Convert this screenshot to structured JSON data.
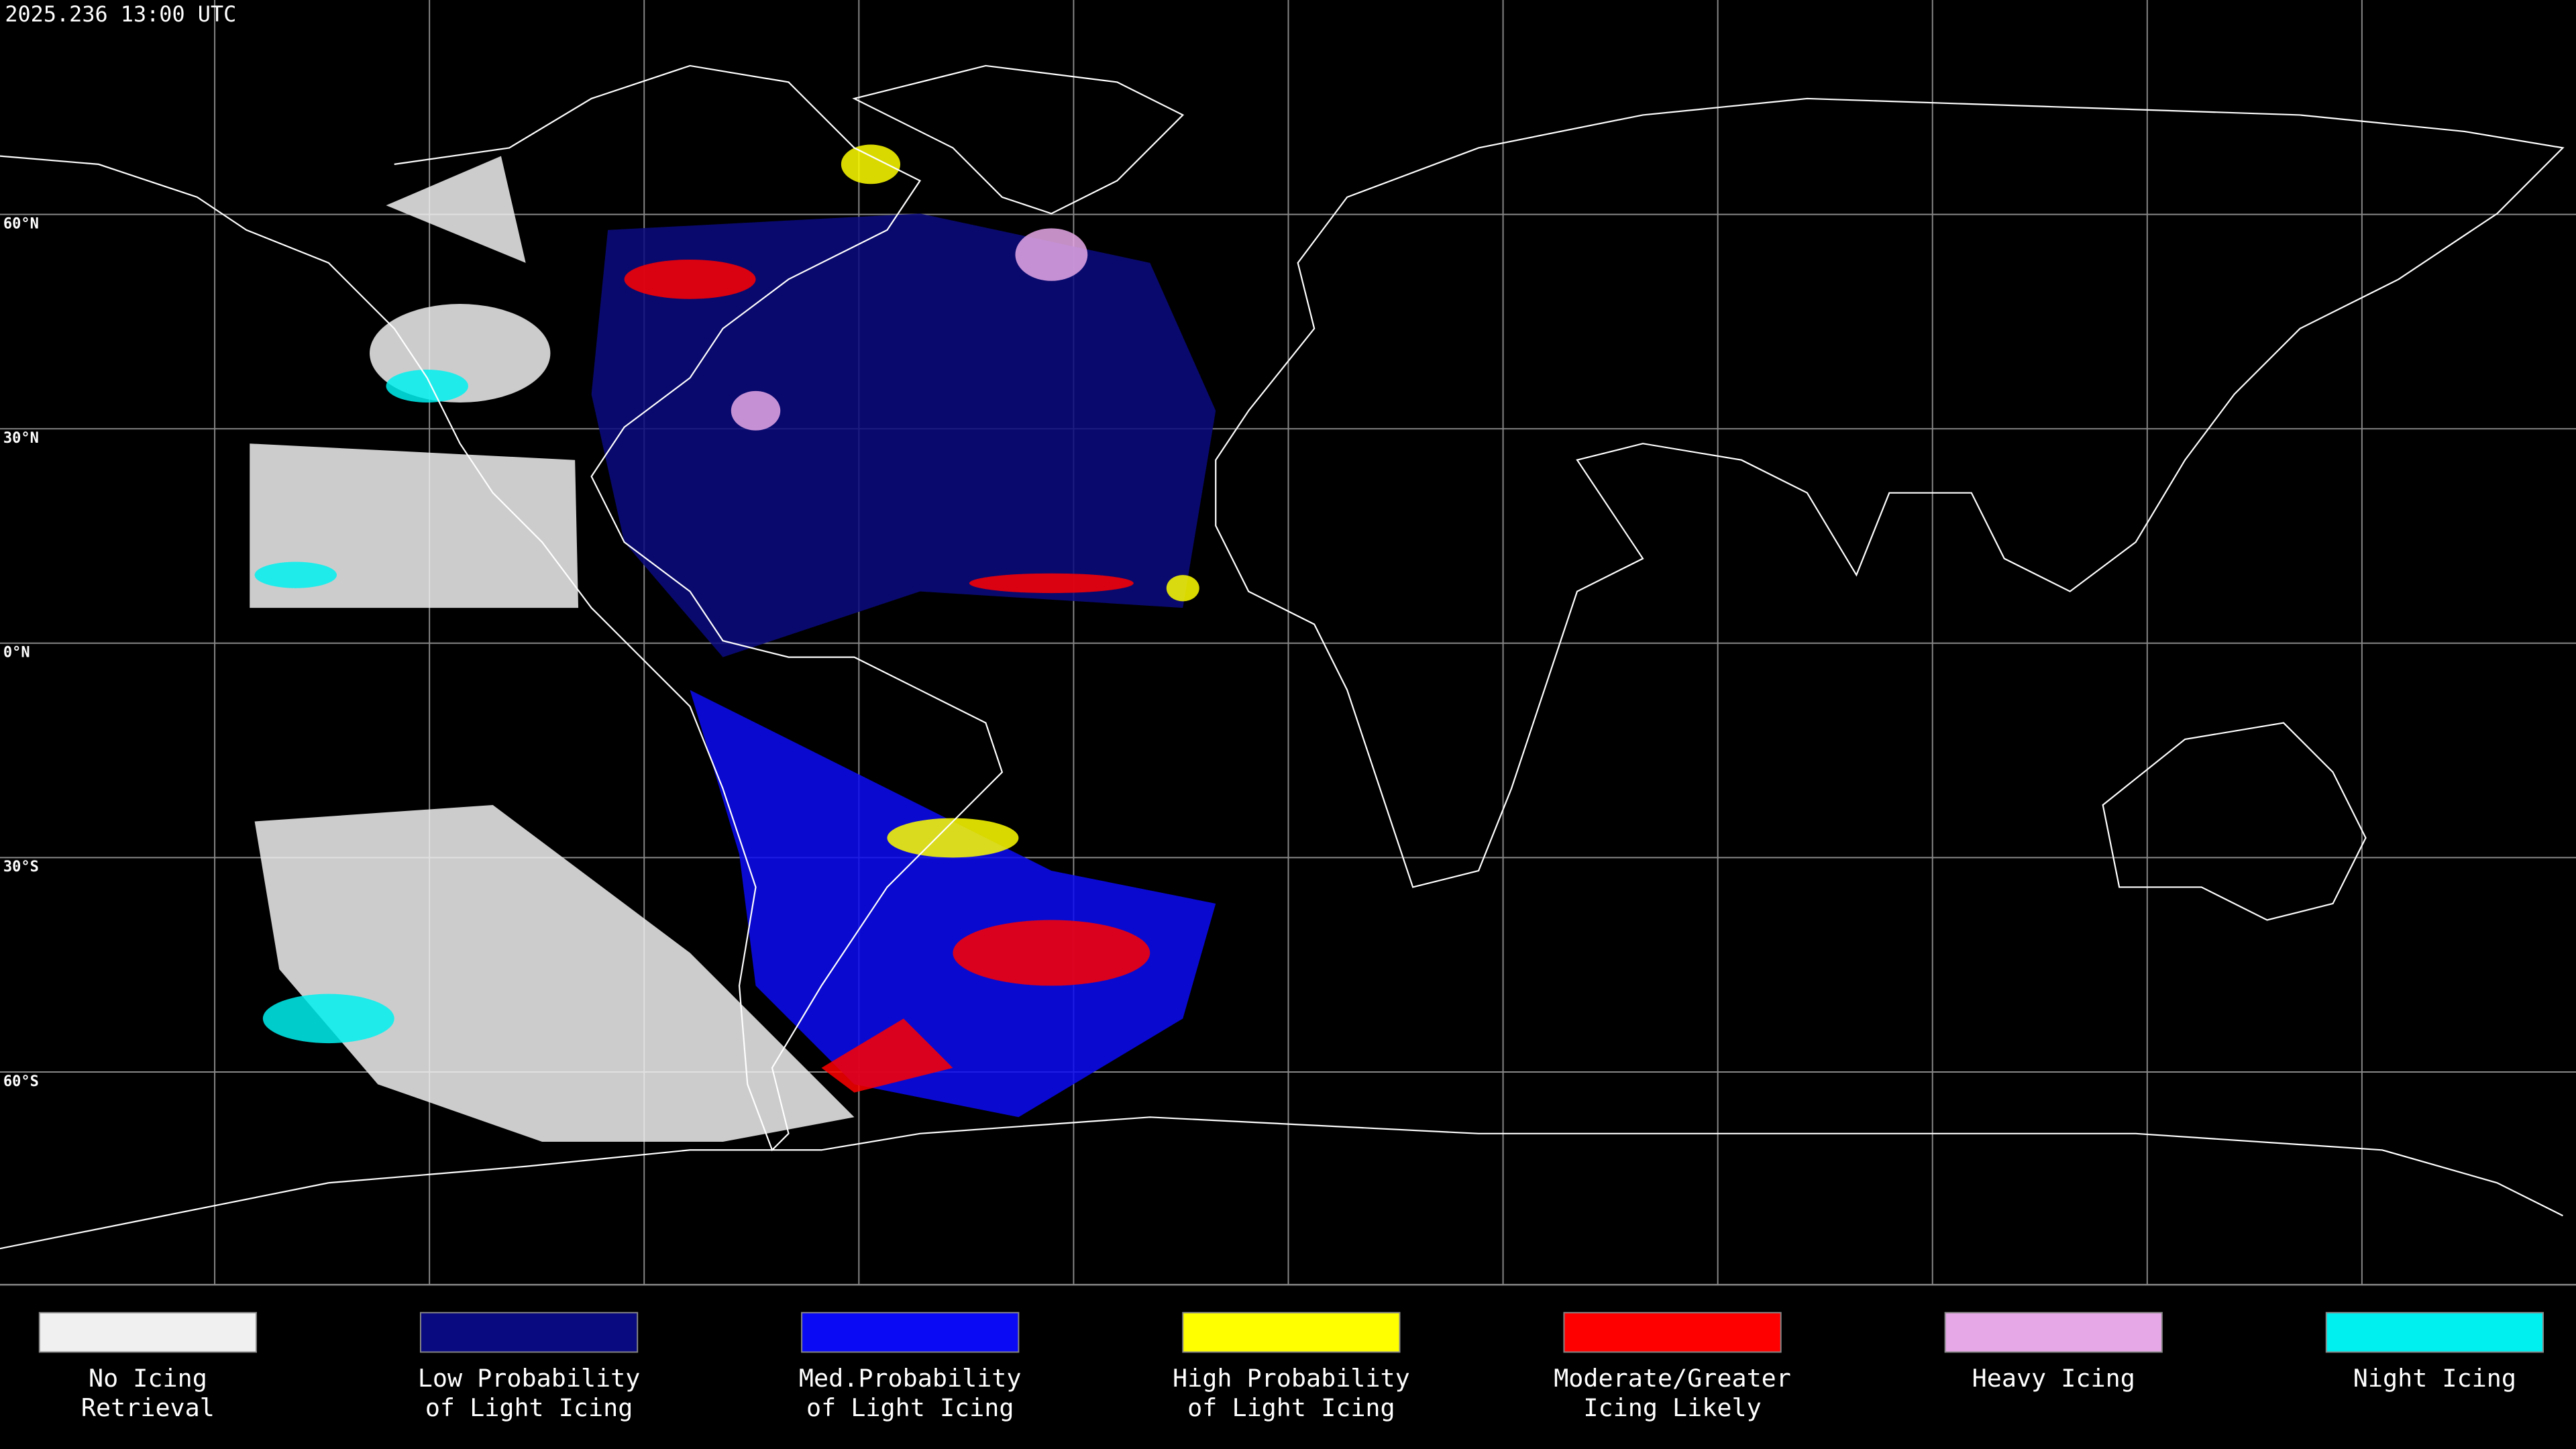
{
  "header": {
    "title": "2025.236 13:00 UTC"
  },
  "latitude_labels": [
    "60°N",
    "30°N",
    "0°N",
    "30°S",
    "60°S"
  ],
  "legend": [
    {
      "label": [
        "No Icing",
        "Retrieval"
      ],
      "color": "#f0f0f0"
    },
    {
      "label": [
        "Low Probability",
        "of Light Icing"
      ],
      "color": "#0a0a80"
    },
    {
      "label": [
        "Med.Probability",
        "of Light Icing"
      ],
      "color": "#0a0af5"
    },
    {
      "label": [
        "High Probability",
        "of Light Icing"
      ],
      "color": "#ffff00"
    },
    {
      "label": [
        "Moderate/Greater",
        "Icing Likely"
      ],
      "color": "#ff0000"
    },
    {
      "label": [
        "Heavy Icing"
      ],
      "color": "#e6a8e6"
    },
    {
      "label": [
        "Night Icing"
      ],
      "color": "#00f0f0"
    }
  ]
}
